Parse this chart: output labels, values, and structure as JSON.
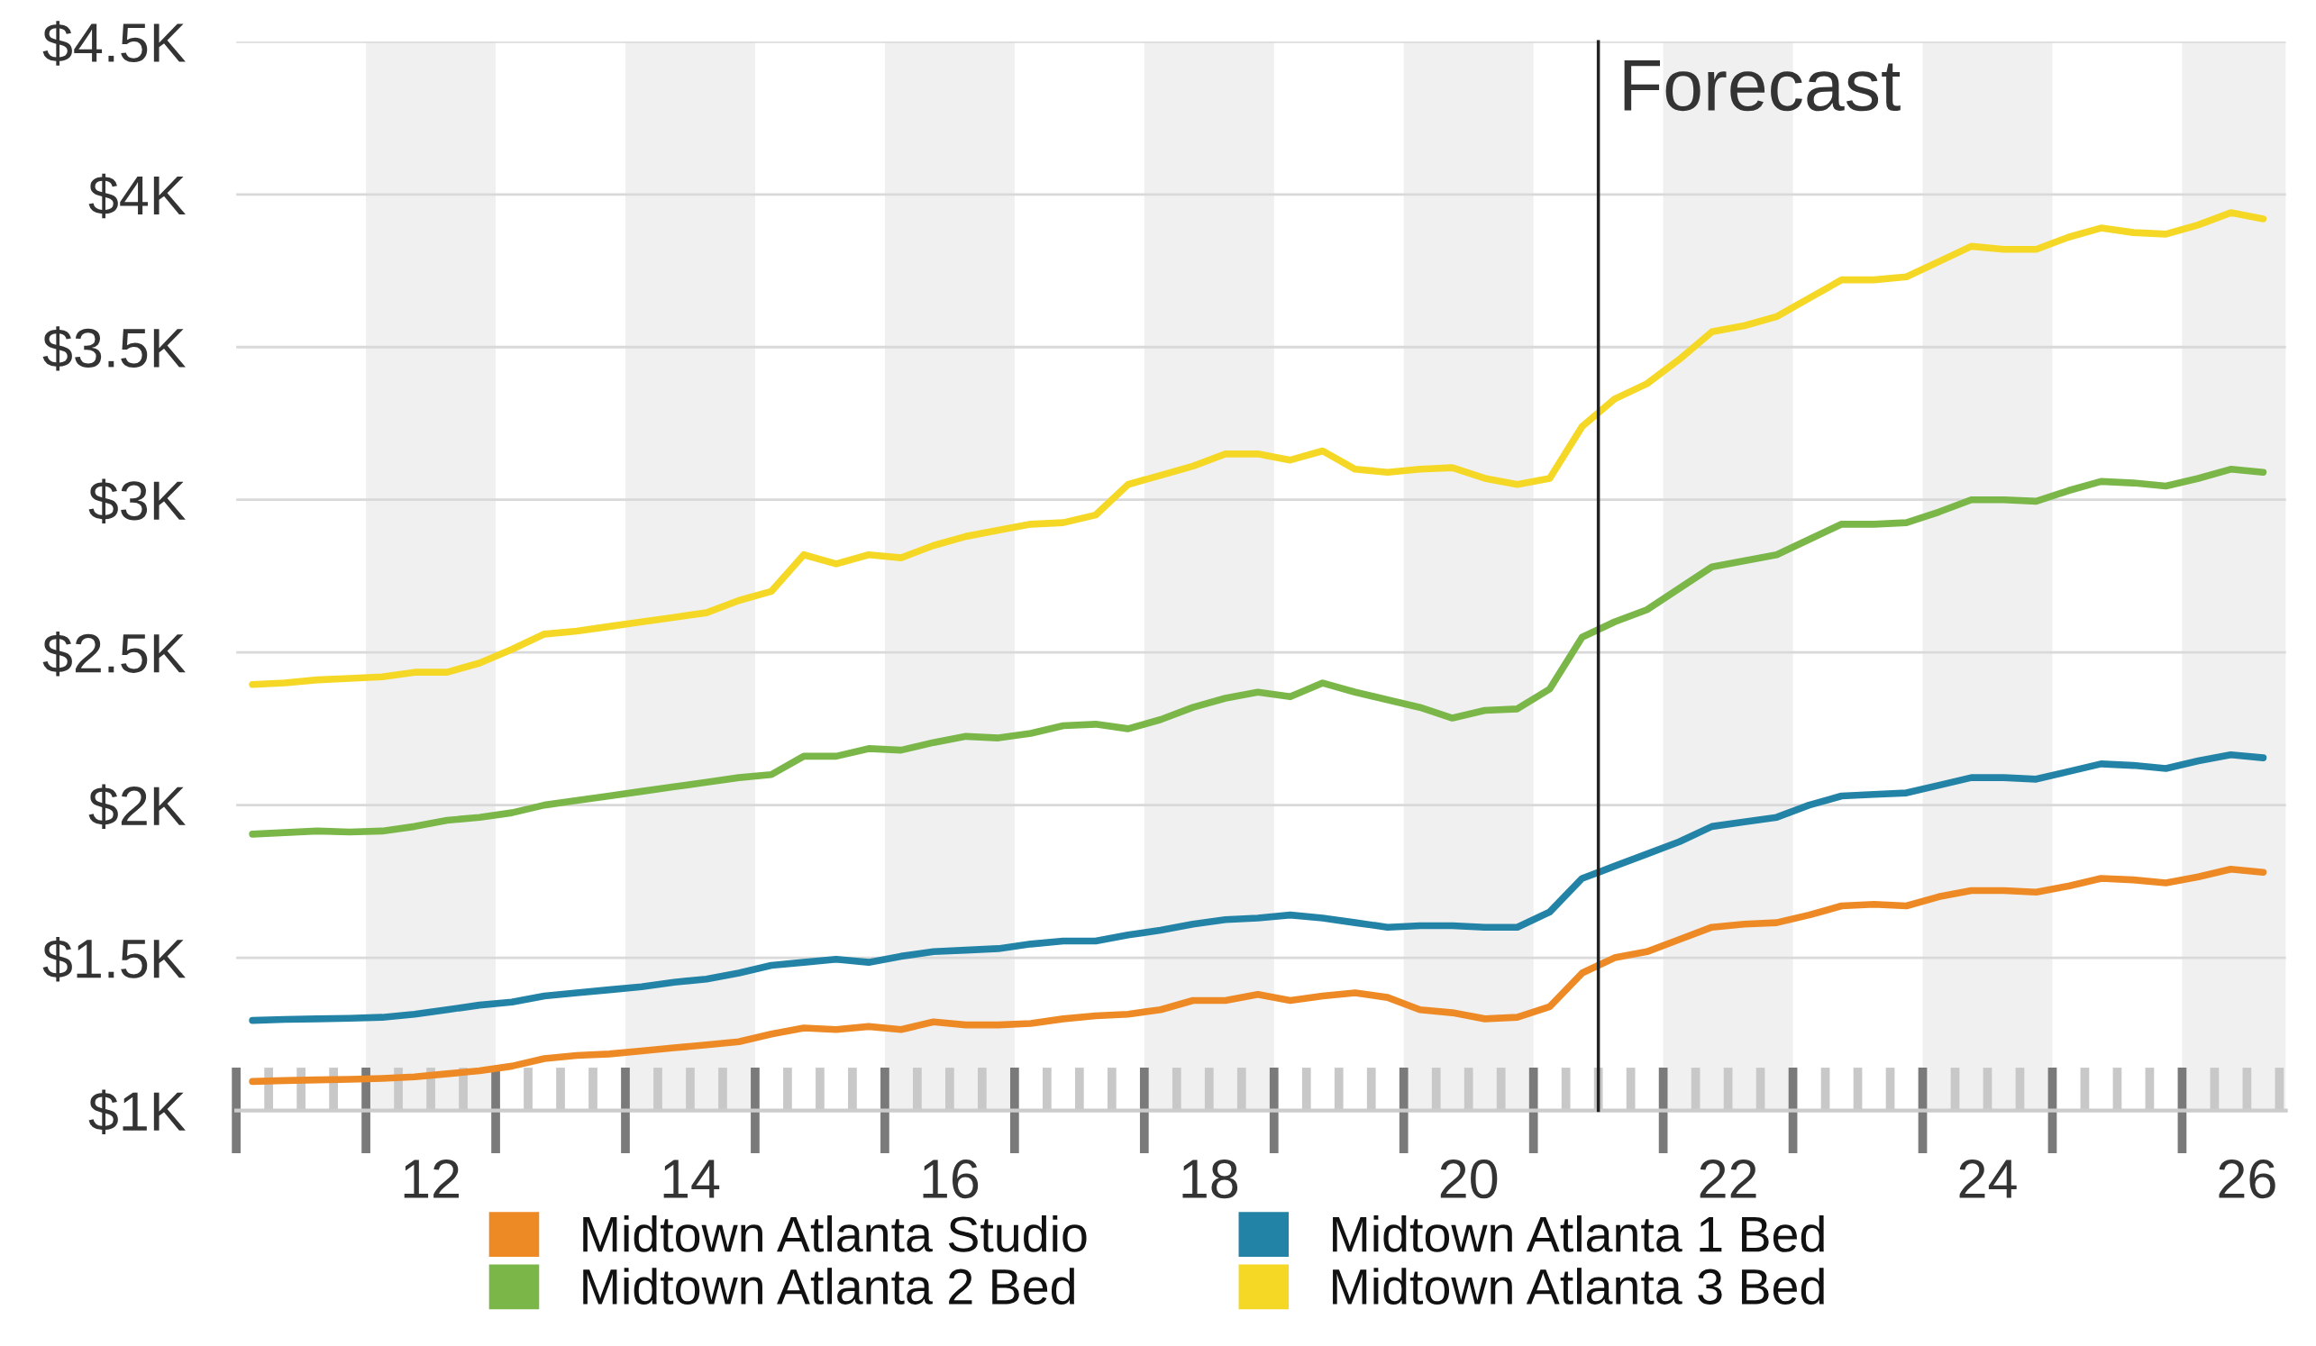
{
  "chart_data": {
    "type": "line",
    "x": [
      10.625,
      10.875,
      11.125,
      11.375,
      11.625,
      11.875,
      12.125,
      12.375,
      12.625,
      12.875,
      13.125,
      13.375,
      13.625,
      13.875,
      14.125,
      14.375,
      14.625,
      14.875,
      15.125,
      15.375,
      15.625,
      15.875,
      16.125,
      16.375,
      16.625,
      16.875,
      17.125,
      17.375,
      17.625,
      17.875,
      18.125,
      18.375,
      18.625,
      18.875,
      19.125,
      19.375,
      19.625,
      19.875,
      20.125,
      20.375,
      20.625,
      20.875,
      21.125,
      21.375,
      21.625,
      21.875,
      22.125,
      22.375,
      22.625,
      22.875,
      23.125,
      23.375,
      23.625,
      23.875,
      24.125,
      24.375,
      24.625,
      24.875,
      25.125,
      25.375,
      25.625,
      25.875,
      26.125
    ],
    "series": [
      {
        "name": "Midtown Atlanta Studio",
        "color": "#ee8a26",
        "values": [
          1095,
          1098,
          1100,
          1102,
          1105,
          1110,
          1120,
          1130,
          1145,
          1170,
          1180,
          1185,
          1195,
          1205,
          1215,
          1225,
          1250,
          1270,
          1265,
          1275,
          1265,
          1290,
          1280,
          1280,
          1285,
          1300,
          1310,
          1315,
          1330,
          1360,
          1360,
          1380,
          1360,
          1375,
          1385,
          1370,
          1330,
          1320,
          1300,
          1305,
          1340,
          1450,
          1500,
          1520,
          1560,
          1600,
          1610,
          1615,
          1640,
          1670,
          1675,
          1670,
          1700,
          1720,
          1720,
          1715,
          1735,
          1760,
          1755,
          1745,
          1765,
          1790,
          1780
        ]
      },
      {
        "name": "Midtown Atlanta 1 Bed",
        "color": "#2383a6",
        "values": [
          1295,
          1298,
          1300,
          1302,
          1305,
          1315,
          1330,
          1345,
          1355,
          1375,
          1385,
          1395,
          1405,
          1420,
          1430,
          1450,
          1475,
          1485,
          1495,
          1485,
          1505,
          1520,
          1525,
          1530,
          1545,
          1555,
          1555,
          1575,
          1590,
          1610,
          1625,
          1630,
          1640,
          1630,
          1615,
          1600,
          1605,
          1605,
          1600,
          1600,
          1650,
          1760,
          1800,
          1840,
          1880,
          1930,
          1945,
          1960,
          2000,
          2030,
          2035,
          2040,
          2065,
          2090,
          2090,
          2085,
          2110,
          2135,
          2130,
          2120,
          2145,
          2165,
          2155
        ]
      },
      {
        "name": "Midtown Atlanta 2 Bed",
        "color": "#7ab648",
        "values": [
          1905,
          1910,
          1915,
          1912,
          1915,
          1930,
          1950,
          1960,
          1975,
          2000,
          2015,
          2030,
          2045,
          2060,
          2075,
          2090,
          2100,
          2160,
          2160,
          2185,
          2180,
          2205,
          2225,
          2220,
          2235,
          2260,
          2265,
          2250,
          2280,
          2320,
          2350,
          2370,
          2355,
          2400,
          2370,
          2345,
          2320,
          2285,
          2310,
          2315,
          2380,
          2550,
          2600,
          2640,
          2710,
          2780,
          2800,
          2820,
          2870,
          2920,
          2920,
          2925,
          2960,
          3000,
          3000,
          2995,
          3030,
          3060,
          3055,
          3045,
          3070,
          3100,
          3090
        ]
      },
      {
        "name": "Midtown Atlanta 3 Bed",
        "color": "#f5d825",
        "values": [
          2395,
          2400,
          2410,
          2415,
          2420,
          2435,
          2435,
          2465,
          2510,
          2560,
          2570,
          2585,
          2600,
          2615,
          2630,
          2670,
          2700,
          2820,
          2790,
          2820,
          2810,
          2850,
          2880,
          2900,
          2920,
          2925,
          2950,
          3050,
          3080,
          3110,
          3150,
          3150,
          3130,
          3160,
          3100,
          3090,
          3100,
          3105,
          3070,
          3050,
          3070,
          3240,
          3330,
          3380,
          3460,
          3550,
          3570,
          3600,
          3660,
          3720,
          3720,
          3730,
          3780,
          3830,
          3820,
          3820,
          3860,
          3890,
          3875,
          3870,
          3900,
          3940,
          3920
        ]
      }
    ],
    "xlim": [
      10.5,
      26.3
    ],
    "xticks": [
      12,
      14,
      16,
      18,
      20,
      22,
      24,
      26
    ],
    "ylim": [
      1000,
      4500
    ],
    "yticks": [
      {
        "value": 1000,
        "label": "$1K"
      },
      {
        "value": 1500,
        "label": "$1.5K"
      },
      {
        "value": 2000,
        "label": "$2K"
      },
      {
        "value": 2500,
        "label": "$2.5K"
      },
      {
        "value": 3000,
        "label": "$3K"
      },
      {
        "value": 3500,
        "label": "$3.5K"
      },
      {
        "value": 4000,
        "label": "$4K"
      },
      {
        "value": 4500,
        "label": "$4.5K"
      }
    ],
    "grid": "y",
    "legend": "bottom",
    "marker": "none",
    "line_style": "solid",
    "ref_lines": [
      {
        "axis": "x",
        "value": 21,
        "label": "Forecast",
        "color": "#222222",
        "line_style": "solid"
      }
    ],
    "bands": [
      {
        "axis": "x",
        "from": 11.5,
        "to": 12.5,
        "color": "#f0f0f0"
      },
      {
        "axis": "x",
        "from": 13.5,
        "to": 14.5,
        "color": "#f0f0f0"
      },
      {
        "axis": "x",
        "from": 15.5,
        "to": 16.5,
        "color": "#f0f0f0"
      },
      {
        "axis": "x",
        "from": 17.5,
        "to": 18.5,
        "color": "#f0f0f0"
      },
      {
        "axis": "x",
        "from": 19.5,
        "to": 20.5,
        "color": "#f0f0f0"
      },
      {
        "axis": "x",
        "from": 21.5,
        "to": 22.5,
        "color": "#f0f0f0"
      },
      {
        "axis": "x",
        "from": 23.5,
        "to": 24.5,
        "color": "#f0f0f0"
      },
      {
        "axis": "x",
        "from": 25.5,
        "to": 26.3,
        "color": "#f0f0f0"
      }
    ]
  }
}
